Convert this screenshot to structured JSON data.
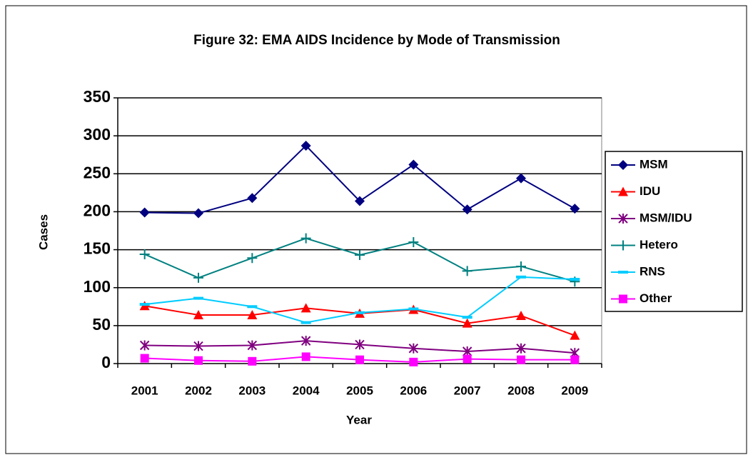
{
  "chart_data": {
    "type": "line",
    "title": "Figure 32: EMA AIDS Incidence by Mode of Transmission",
    "x_label": "Year",
    "y_label": "Cases",
    "categories": [
      "2001",
      "2002",
      "2003",
      "2004",
      "2005",
      "2006",
      "2007",
      "2008",
      "2009"
    ],
    "series": [
      {
        "name": "MSM",
        "color": "#000080",
        "marker": "diamond",
        "values": [
          199,
          198,
          218,
          287,
          214,
          262,
          203,
          244,
          204
        ]
      },
      {
        "name": "IDU",
        "color": "#ff0000",
        "marker": "triangle",
        "values": [
          76,
          64,
          64,
          73,
          66,
          71,
          53,
          63,
          37
        ]
      },
      {
        "name": "MSM/IDU",
        "color": "#800080",
        "marker": "asterisk",
        "values": [
          24,
          23,
          24,
          30,
          25,
          20,
          16,
          20,
          14
        ]
      },
      {
        "name": "Hetero",
        "color": "#008080",
        "marker": "plus",
        "values": [
          144,
          113,
          139,
          165,
          143,
          160,
          122,
          128,
          108
        ]
      },
      {
        "name": "RNS",
        "color": "#00ccff",
        "marker": "dash",
        "values": [
          78,
          86,
          75,
          54,
          67,
          72,
          61,
          114,
          111
        ]
      },
      {
        "name": "Other",
        "color": "#ff00ff",
        "marker": "square",
        "values": [
          7,
          4,
          3,
          9,
          5,
          2,
          6,
          5,
          5
        ]
      }
    ],
    "ylim": [
      0,
      350
    ],
    "yticks": [
      0,
      50,
      100,
      150,
      200,
      250,
      300,
      350
    ],
    "grid": true,
    "legend": "right"
  }
}
